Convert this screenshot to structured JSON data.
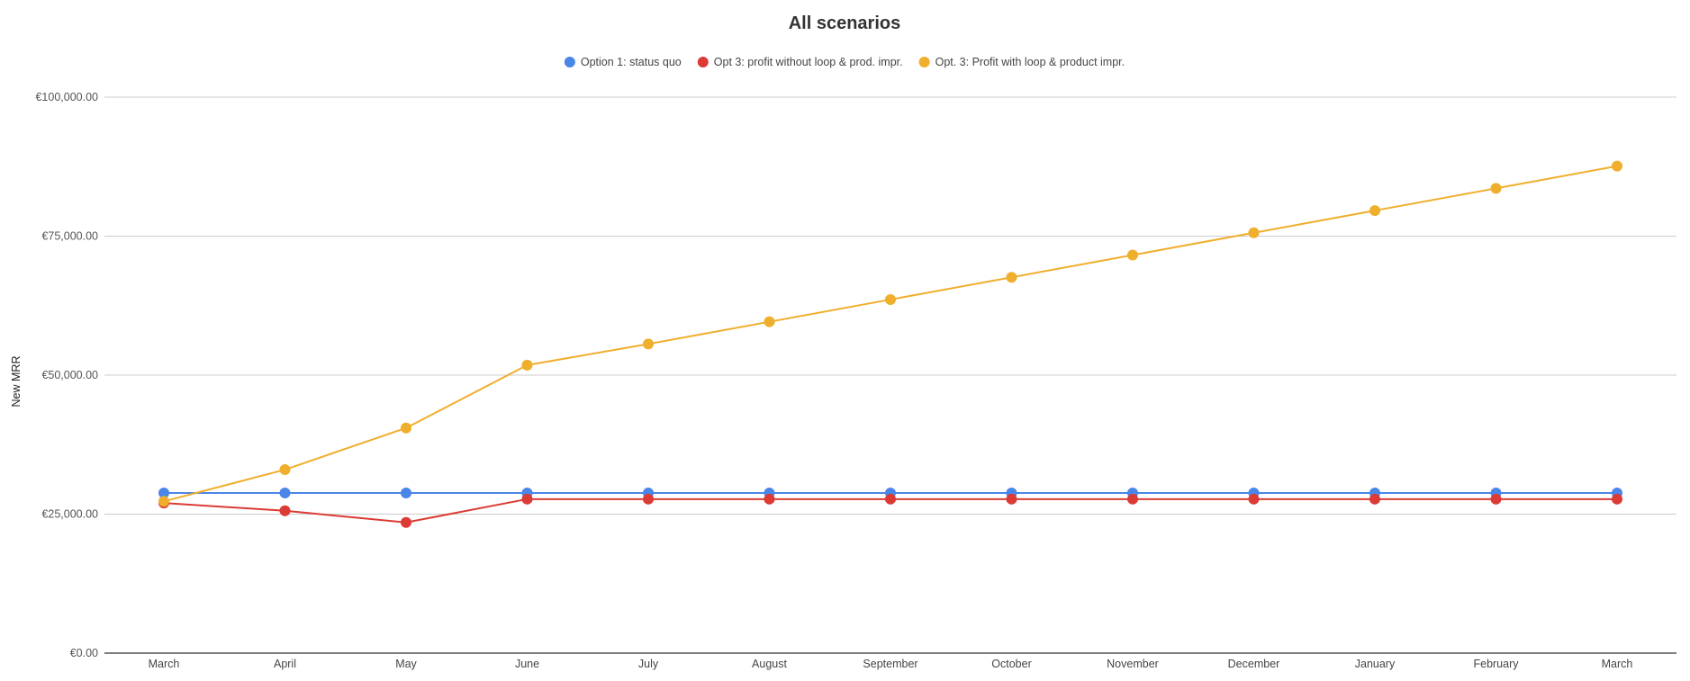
{
  "chart_data": {
    "type": "line",
    "title": "All scenarios",
    "xlabel": "",
    "ylabel": "New MRR",
    "ylim": [
      0,
      100000
    ],
    "y_ticks": [
      0,
      25000,
      50000,
      75000,
      100000
    ],
    "y_tick_labels": [
      "€0.00",
      "€25,000.00",
      "€50,000.00",
      "€75,000.00",
      "€100,000.00"
    ],
    "categories": [
      "March",
      "April",
      "May",
      "June",
      "July",
      "August",
      "September",
      "October",
      "November",
      "December",
      "January",
      "February",
      "March"
    ],
    "grid": true,
    "legend_position": "top",
    "series": [
      {
        "name": "Option 1: status quo",
        "color": "#4a86e8",
        "values": [
          28800,
          28800,
          28800,
          28800,
          28800,
          28800,
          28800,
          28800,
          28800,
          28800,
          28800,
          28800,
          28800
        ]
      },
      {
        "name": "Opt 3: profit without loop & prod. impr.",
        "color": "#db3b34",
        "values": [
          27000,
          25600,
          23500,
          27700,
          27700,
          27700,
          27700,
          27700,
          27700,
          27700,
          27700,
          27700,
          27700
        ]
      },
      {
        "name": "Opt. 3: Profit with loop & product impr.",
        "color": "#f0ae2d",
        "values": [
          27300,
          33000,
          40500,
          51800,
          55600,
          59600,
          63600,
          67600,
          71600,
          75600,
          79600,
          83600,
          87600
        ]
      }
    ]
  }
}
